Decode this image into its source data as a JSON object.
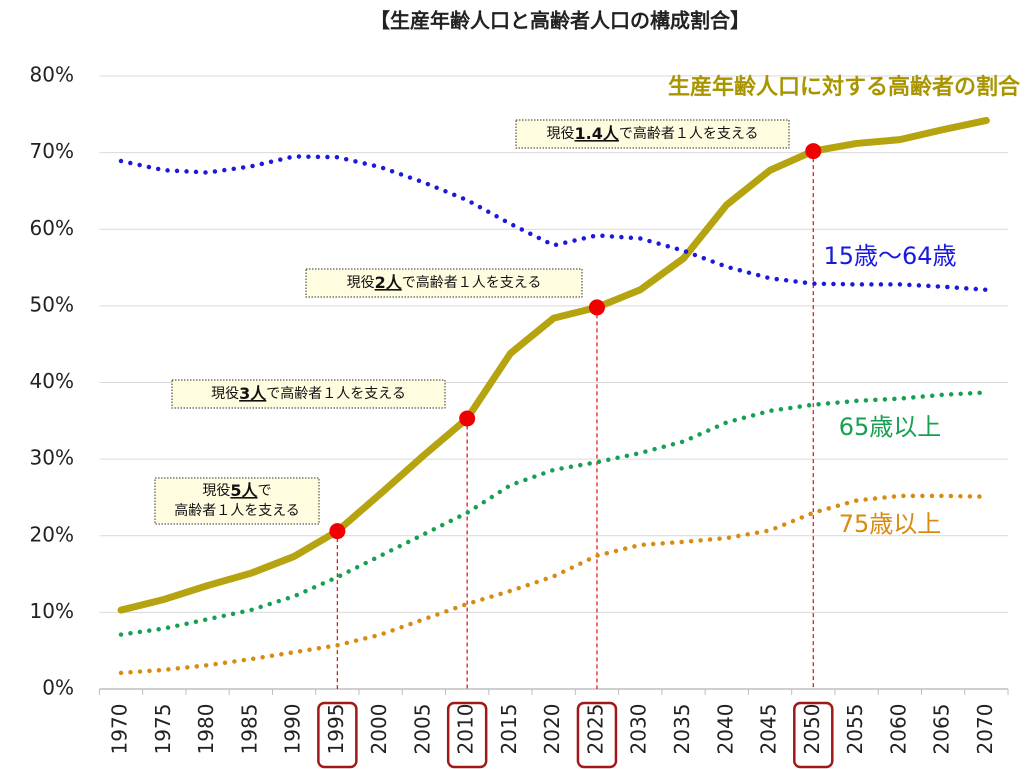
{
  "chart_data": {
    "type": "line",
    "title": "【生産年齢人口と高齢者人口の構成割合】",
    "categories": [
      "1970",
      "1975",
      "1980",
      "1985",
      "1990",
      "1995",
      "2000",
      "2005",
      "2010",
      "2015",
      "2020",
      "2025",
      "2030",
      "2035",
      "2040",
      "2045",
      "2050",
      "2055",
      "2060",
      "2065",
      "2070"
    ],
    "series": [
      {
        "name": "生産年齢人口に対する高齢者の割合",
        "color": "#b5a310",
        "style": "solid",
        "values": [
          10.3,
          11.7,
          13.5,
          15.1,
          17.3,
          20.6,
          25.5,
          30.5,
          35.3,
          43.8,
          48.4,
          49.8,
          52.1,
          56.2,
          63.2,
          67.7,
          70.2,
          71.2,
          71.7,
          73.0,
          74.2
        ]
      },
      {
        "name": "15歳～64歳",
        "color": "#1a1adc",
        "style": "dotted",
        "values": [
          68.9,
          67.7,
          67.4,
          68.2,
          69.5,
          69.4,
          68.1,
          66.1,
          63.8,
          60.7,
          57.9,
          59.2,
          58.8,
          57.2,
          55.1,
          53.6,
          52.9,
          52.8,
          52.8,
          52.5,
          52.1
        ]
      },
      {
        "name": "65歳以上",
        "color": "#16a050",
        "style": "dotted",
        "values": [
          7.1,
          7.9,
          9.1,
          10.3,
          12.1,
          14.6,
          17.4,
          20.2,
          23.0,
          26.6,
          28.6,
          29.6,
          30.8,
          32.3,
          34.8,
          36.3,
          37.1,
          37.6,
          37.9,
          38.4,
          38.7
        ]
      },
      {
        "name": "75歳以上",
        "color": "#d98a10",
        "style": "dotted",
        "values": [
          2.1,
          2.5,
          3.1,
          3.9,
          4.8,
          5.7,
          7.1,
          9.1,
          11.1,
          12.8,
          14.7,
          17.4,
          18.8,
          19.2,
          19.7,
          20.7,
          23.0,
          24.6,
          25.2,
          25.2,
          25.1
        ]
      }
    ],
    "ylim": [
      0,
      80
    ],
    "yticks": [
      {
        "value": 0,
        "label": "0%"
      },
      {
        "value": 10,
        "label": "10%"
      },
      {
        "value": 20,
        "label": "20%"
      },
      {
        "value": 30,
        "label": "30%"
      },
      {
        "value": 40,
        "label": "40%"
      },
      {
        "value": 50,
        "label": "50%"
      },
      {
        "value": 60,
        "label": "60%"
      },
      {
        "value": 70,
        "label": "70%"
      },
      {
        "value": 80,
        "label": "80%"
      }
    ],
    "grid": true,
    "highlighted_categories": [
      "1995",
      "2010",
      "2025",
      "2050"
    ],
    "annotations": [
      {
        "lines": [
          [
            {
              "text": "現役"
            },
            {
              "text": "5人",
              "bold": true
            },
            {
              "text": "で"
            }
          ],
          [
            {
              "text": "高齢者１人を支える"
            }
          ]
        ]
      },
      {
        "lines": [
          [
            {
              "text": "現役"
            },
            {
              "text": "3人",
              "bold": true
            },
            {
              "text": "で高齢者１人を支える"
            }
          ]
        ]
      },
      {
        "lines": [
          [
            {
              "text": "現役"
            },
            {
              "text": "2人",
              "bold": true
            },
            {
              "text": "で高齢者１人を支える"
            }
          ]
        ]
      },
      {
        "lines": [
          [
            {
              "text": "現役"
            },
            {
              "text": "1.4人",
              "bold": true
            },
            {
              "text": "で高齢者１人を支える"
            }
          ]
        ]
      }
    ]
  }
}
